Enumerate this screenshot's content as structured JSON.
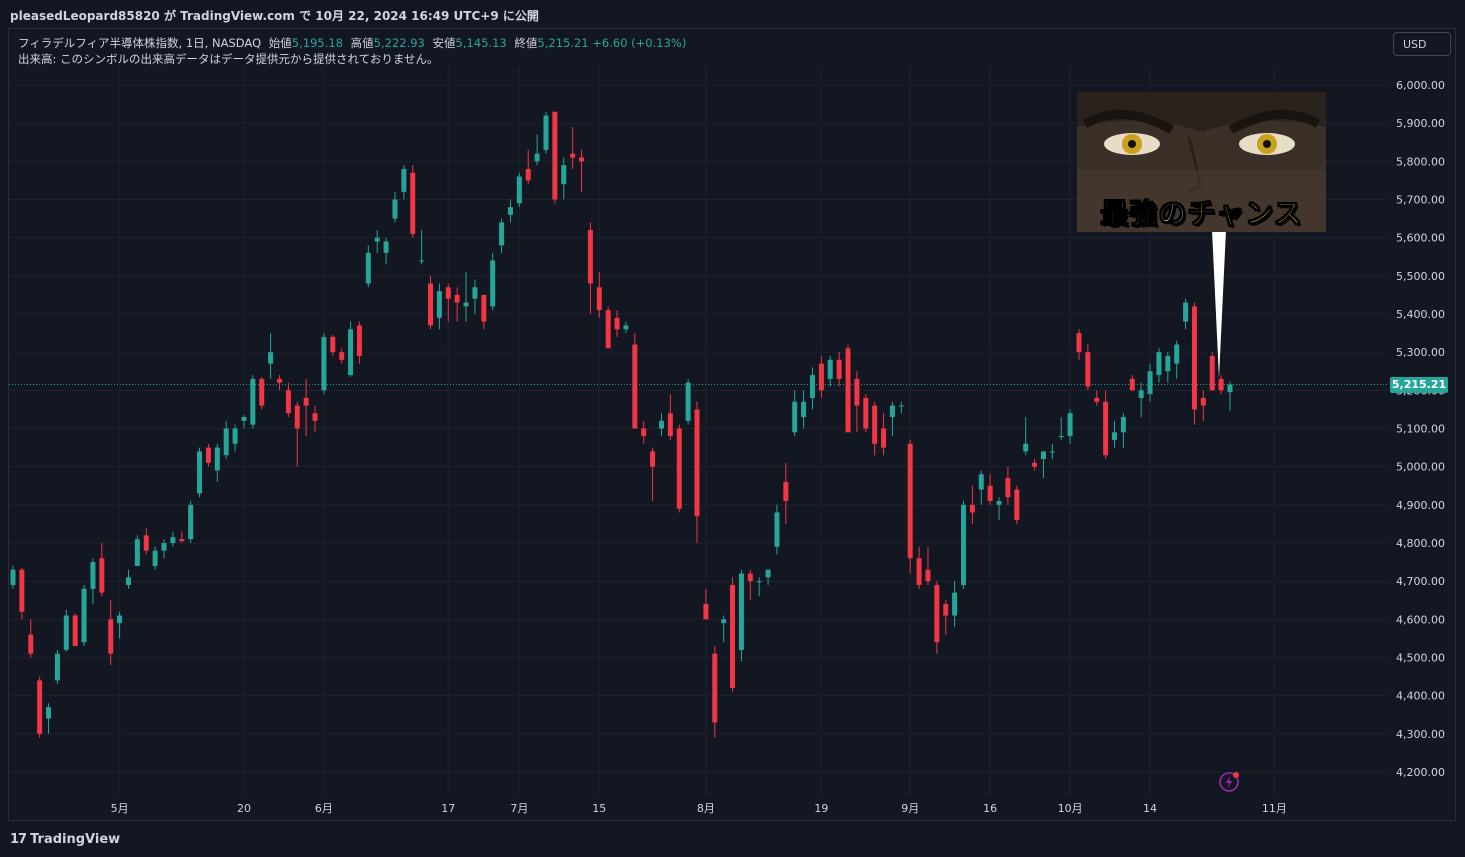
{
  "header": {
    "publish_line": "pleasedLeopard85820 が TradingView.com で 10月 22, 2024 16:49 UTC+9 に公開"
  },
  "legend": {
    "symbol": "フィラデルフィア半導体株指数, 1日, NASDAQ",
    "open_label": "始値",
    "open": "5,195.18",
    "high_label": "高値",
    "high": "5,222.93",
    "low_label": "安値",
    "low": "5,145.13",
    "close_label": "終値",
    "close": "5,215.21",
    "change": "+6.60 (+0.13%)",
    "volume_note": "出来高: このシンボルの出来高データはデータ提供元から提供されておりません。"
  },
  "currency_button": "USD",
  "last_price": "5,215.21",
  "thumbnail": {
    "caption_part1": "最強の",
    "caption_part2": "チャンス"
  },
  "footer": {
    "brand": "TradingView",
    "logo": "17"
  },
  "colors": {
    "up": "#26a69a",
    "down": "#f23645",
    "background": "#131722",
    "grid": "#1e222d",
    "text": "#d1d4dc"
  },
  "chart_data": {
    "type": "candlestick",
    "title": "フィラデルフィア半導体株指数, 1日, NASDAQ",
    "x_ticks": [
      "5月",
      "20",
      "6月",
      "17",
      "7月",
      "15",
      "8月",
      "19",
      "9月",
      "16",
      "10月",
      "14",
      "11月"
    ],
    "y_ticks": [
      "4,200.00",
      "4,300.00",
      "4,400.00",
      "4,500.00",
      "4,600.00",
      "4,700.00",
      "4,800.00",
      "4,900.00",
      "5,000.00",
      "5,100.00",
      "5,200.00",
      "5,300.00",
      "5,400.00",
      "5,500.00",
      "5,600.00",
      "5,700.00",
      "5,800.00",
      "5,900.00",
      "6,000.00"
    ],
    "ylim": [
      4150,
      6050
    ],
    "grid": true,
    "last_price": 5215.21,
    "candles": [
      {
        "o": 4690,
        "h": 4740,
        "l": 4680,
        "c": 4730
      },
      {
        "o": 4730,
        "h": 4735,
        "l": 4600,
        "c": 4620
      },
      {
        "o": 4560,
        "h": 4600,
        "l": 4500,
        "c": 4510
      },
      {
        "o": 4440,
        "h": 4450,
        "l": 4290,
        "c": 4300
      },
      {
        "o": 4340,
        "h": 4380,
        "l": 4300,
        "c": 4370
      },
      {
        "o": 4440,
        "h": 4520,
        "l": 4430,
        "c": 4510
      },
      {
        "o": 4520,
        "h": 4625,
        "l": 4515,
        "c": 4610
      },
      {
        "o": 4610,
        "h": 4615,
        "l": 4530,
        "c": 4530
      },
      {
        "o": 4540,
        "h": 4690,
        "l": 4530,
        "c": 4680
      },
      {
        "o": 4680,
        "h": 4760,
        "l": 4640,
        "c": 4750
      },
      {
        "o": 4760,
        "h": 4800,
        "l": 4660,
        "c": 4670
      },
      {
        "o": 4600,
        "h": 4650,
        "l": 4480,
        "c": 4510
      },
      {
        "o": 4590,
        "h": 4620,
        "l": 4550,
        "c": 4610
      },
      {
        "o": 4690,
        "h": 4730,
        "l": 4680,
        "c": 4710
      },
      {
        "o": 4740,
        "h": 4820,
        "l": 4740,
        "c": 4810
      },
      {
        "o": 4820,
        "h": 4840,
        "l": 4770,
        "c": 4780
      },
      {
        "o": 4740,
        "h": 4790,
        "l": 4730,
        "c": 4780
      },
      {
        "o": 4780,
        "h": 4810,
        "l": 4760,
        "c": 4800
      },
      {
        "o": 4800,
        "h": 4830,
        "l": 4790,
        "c": 4815
      },
      {
        "o": 4810,
        "h": 4830,
        "l": 4800,
        "c": 4805
      },
      {
        "o": 4810,
        "h": 4910,
        "l": 4800,
        "c": 4900
      },
      {
        "o": 4930,
        "h": 5050,
        "l": 4920,
        "c": 5040
      },
      {
        "o": 5050,
        "h": 5060,
        "l": 5000,
        "c": 5010
      },
      {
        "o": 4990,
        "h": 5060,
        "l": 4960,
        "c": 5050
      },
      {
        "o": 5030,
        "h": 5120,
        "l": 5020,
        "c": 5100
      },
      {
        "o": 5060,
        "h": 5110,
        "l": 5040,
        "c": 5100
      },
      {
        "o": 5120,
        "h": 5135,
        "l": 5100,
        "c": 5130
      },
      {
        "o": 5110,
        "h": 5240,
        "l": 5100,
        "c": 5230
      },
      {
        "o": 5230,
        "h": 5235,
        "l": 5150,
        "c": 5160
      },
      {
        "o": 5270,
        "h": 5350,
        "l": 5230,
        "c": 5300
      },
      {
        "o": 5230,
        "h": 5240,
        "l": 5200,
        "c": 5220
      },
      {
        "o": 5200,
        "h": 5220,
        "l": 5130,
        "c": 5140
      },
      {
        "o": 5160,
        "h": 5170,
        "l": 5000,
        "c": 5100
      },
      {
        "o": 5180,
        "h": 5230,
        "l": 5080,
        "c": 5160
      },
      {
        "o": 5140,
        "h": 5160,
        "l": 5090,
        "c": 5120
      },
      {
        "o": 5200,
        "h": 5350,
        "l": 5190,
        "c": 5340
      },
      {
        "o": 5340,
        "h": 5345,
        "l": 5290,
        "c": 5300
      },
      {
        "o": 5300,
        "h": 5310,
        "l": 5270,
        "c": 5280
      },
      {
        "o": 5240,
        "h": 5380,
        "l": 5235,
        "c": 5360
      },
      {
        "o": 5370,
        "h": 5380,
        "l": 5270,
        "c": 5290
      },
      {
        "o": 5480,
        "h": 5580,
        "l": 5470,
        "c": 5560
      },
      {
        "o": 5590,
        "h": 5620,
        "l": 5560,
        "c": 5600
      },
      {
        "o": 5560,
        "h": 5600,
        "l": 5530,
        "c": 5590
      },
      {
        "o": 5650,
        "h": 5720,
        "l": 5640,
        "c": 5700
      },
      {
        "o": 5720,
        "h": 5790,
        "l": 5700,
        "c": 5780
      },
      {
        "o": 5770,
        "h": 5790,
        "l": 5600,
        "c": 5610
      },
      {
        "o": 5540,
        "h": 5620,
        "l": 5530,
        "c": 5540
      },
      {
        "o": 5480,
        "h": 5500,
        "l": 5360,
        "c": 5370
      },
      {
        "o": 5390,
        "h": 5480,
        "l": 5360,
        "c": 5460
      },
      {
        "o": 5470,
        "h": 5480,
        "l": 5380,
        "c": 5440
      },
      {
        "o": 5450,
        "h": 5470,
        "l": 5380,
        "c": 5430
      },
      {
        "o": 5420,
        "h": 5510,
        "l": 5380,
        "c": 5430
      },
      {
        "o": 5440,
        "h": 5490,
        "l": 5400,
        "c": 5470
      },
      {
        "o": 5450,
        "h": 5450,
        "l": 5360,
        "c": 5380
      },
      {
        "o": 5420,
        "h": 5560,
        "l": 5410,
        "c": 5540
      },
      {
        "o": 5580,
        "h": 5650,
        "l": 5560,
        "c": 5640
      },
      {
        "o": 5660,
        "h": 5700,
        "l": 5640,
        "c": 5680
      },
      {
        "o": 5690,
        "h": 5770,
        "l": 5680,
        "c": 5760
      },
      {
        "o": 5780,
        "h": 5830,
        "l": 5740,
        "c": 5750
      },
      {
        "o": 5800,
        "h": 5870,
        "l": 5790,
        "c": 5820
      },
      {
        "o": 5830,
        "h": 5930,
        "l": 5820,
        "c": 5920
      },
      {
        "o": 5930,
        "h": 5930,
        "l": 5690,
        "c": 5700
      },
      {
        "o": 5740,
        "h": 5810,
        "l": 5700,
        "c": 5790
      },
      {
        "o": 5820,
        "h": 5890,
        "l": 5780,
        "c": 5810
      },
      {
        "o": 5810,
        "h": 5830,
        "l": 5720,
        "c": 5800
      },
      {
        "o": 5620,
        "h": 5640,
        "l": 5400,
        "c": 5480
      },
      {
        "o": 5470,
        "h": 5510,
        "l": 5390,
        "c": 5410
      },
      {
        "o": 5410,
        "h": 5420,
        "l": 5320,
        "c": 5310
      },
      {
        "o": 5390,
        "h": 5410,
        "l": 5340,
        "c": 5360
      },
      {
        "o": 5360,
        "h": 5380,
        "l": 5350,
        "c": 5370
      },
      {
        "o": 5320,
        "h": 5350,
        "l": 5100,
        "c": 5100
      },
      {
        "o": 5100,
        "h": 5120,
        "l": 5060,
        "c": 5080
      },
      {
        "o": 5040,
        "h": 5050,
        "l": 4910,
        "c": 5000
      },
      {
        "o": 5100,
        "h": 5140,
        "l": 5080,
        "c": 5120
      },
      {
        "o": 5140,
        "h": 5190,
        "l": 5070,
        "c": 5080
      },
      {
        "o": 5100,
        "h": 5110,
        "l": 4880,
        "c": 4890
      },
      {
        "o": 5120,
        "h": 5230,
        "l": 5110,
        "c": 5220
      },
      {
        "o": 5150,
        "h": 5170,
        "l": 4800,
        "c": 4870
      },
      {
        "o": 4640,
        "h": 4680,
        "l": 4600,
        "c": 4600
      },
      {
        "o": 4510,
        "h": 4530,
        "l": 4290,
        "c": 4330
      },
      {
        "o": 4590,
        "h": 4610,
        "l": 4540,
        "c": 4600
      },
      {
        "o": 4690,
        "h": 4710,
        "l": 4410,
        "c": 4420
      },
      {
        "o": 4520,
        "h": 4730,
        "l": 4490,
        "c": 4720
      },
      {
        "o": 4720,
        "h": 4730,
        "l": 4650,
        "c": 4700
      },
      {
        "o": 4700,
        "h": 4710,
        "l": 4660,
        "c": 4700
      },
      {
        "o": 4710,
        "h": 4730,
        "l": 4690,
        "c": 4730
      },
      {
        "o": 4790,
        "h": 4900,
        "l": 4770,
        "c": 4880
      },
      {
        "o": 4960,
        "h": 5010,
        "l": 4850,
        "c": 4910
      },
      {
        "o": 5090,
        "h": 5200,
        "l": 5080,
        "c": 5170
      },
      {
        "o": 5130,
        "h": 5200,
        "l": 5100,
        "c": 5170
      },
      {
        "o": 5180,
        "h": 5260,
        "l": 5150,
        "c": 5240
      },
      {
        "o": 5270,
        "h": 5290,
        "l": 5180,
        "c": 5200
      },
      {
        "o": 5230,
        "h": 5290,
        "l": 5210,
        "c": 5280
      },
      {
        "o": 5280,
        "h": 5300,
        "l": 5210,
        "c": 5230
      },
      {
        "o": 5310,
        "h": 5320,
        "l": 5090,
        "c": 5090
      },
      {
        "o": 5230,
        "h": 5250,
        "l": 5090,
        "c": 5160
      },
      {
        "o": 5180,
        "h": 5190,
        "l": 5090,
        "c": 5100
      },
      {
        "o": 5160,
        "h": 5170,
        "l": 5030,
        "c": 5060
      },
      {
        "o": 5100,
        "h": 5140,
        "l": 5030,
        "c": 5050
      },
      {
        "o": 5130,
        "h": 5170,
        "l": 5080,
        "c": 5160
      },
      {
        "o": 5160,
        "h": 5170,
        "l": 5140,
        "c": 5160
      },
      {
        "o": 5060,
        "h": 5070,
        "l": 4720,
        "c": 4760
      },
      {
        "o": 4760,
        "h": 4790,
        "l": 4680,
        "c": 4690
      },
      {
        "o": 4730,
        "h": 4790,
        "l": 4690,
        "c": 4700
      },
      {
        "o": 4690,
        "h": 4700,
        "l": 4510,
        "c": 4540
      },
      {
        "o": 4640,
        "h": 4650,
        "l": 4560,
        "c": 4610
      },
      {
        "o": 4610,
        "h": 4700,
        "l": 4580,
        "c": 4670
      },
      {
        "o": 4690,
        "h": 4910,
        "l": 4680,
        "c": 4900
      },
      {
        "o": 4900,
        "h": 4950,
        "l": 4850,
        "c": 4880
      },
      {
        "o": 4940,
        "h": 4990,
        "l": 4900,
        "c": 4980
      },
      {
        "o": 4950,
        "h": 4980,
        "l": 4900,
        "c": 4910
      },
      {
        "o": 4900,
        "h": 4920,
        "l": 4860,
        "c": 4910
      },
      {
        "o": 4970,
        "h": 5000,
        "l": 4900,
        "c": 4920
      },
      {
        "o": 4940,
        "h": 4950,
        "l": 4850,
        "c": 4860
      },
      {
        "o": 5040,
        "h": 5130,
        "l": 5030,
        "c": 5060
      },
      {
        "o": 5010,
        "h": 5020,
        "l": 4990,
        "c": 5000
      },
      {
        "o": 5020,
        "h": 5040,
        "l": 4970,
        "c": 5040
      },
      {
        "o": 5040,
        "h": 5060,
        "l": 5020,
        "c": 5040
      },
      {
        "o": 5080,
        "h": 5130,
        "l": 5070,
        "c": 5080
      },
      {
        "o": 5080,
        "h": 5150,
        "l": 5060,
        "c": 5140
      },
      {
        "o": 5350,
        "h": 5360,
        "l": 5280,
        "c": 5300
      },
      {
        "o": 5300,
        "h": 5320,
        "l": 5200,
        "c": 5210
      },
      {
        "o": 5180,
        "h": 5200,
        "l": 5160,
        "c": 5170
      },
      {
        "o": 5170,
        "h": 5200,
        "l": 5020,
        "c": 5030
      },
      {
        "o": 5070,
        "h": 5120,
        "l": 5050,
        "c": 5090
      },
      {
        "o": 5090,
        "h": 5140,
        "l": 5050,
        "c": 5130
      },
      {
        "o": 5230,
        "h": 5240,
        "l": 5200,
        "c": 5200
      },
      {
        "o": 5180,
        "h": 5220,
        "l": 5130,
        "c": 5200
      },
      {
        "o": 5190,
        "h": 5270,
        "l": 5170,
        "c": 5250
      },
      {
        "o": 5240,
        "h": 5310,
        "l": 5220,
        "c": 5300
      },
      {
        "o": 5250,
        "h": 5300,
        "l": 5220,
        "c": 5290
      },
      {
        "o": 5270,
        "h": 5330,
        "l": 5230,
        "c": 5320
      },
      {
        "o": 5380,
        "h": 5440,
        "l": 5360,
        "c": 5430
      },
      {
        "o": 5420,
        "h": 5430,
        "l": 5110,
        "c": 5150
      },
      {
        "o": 5180,
        "h": 5200,
        "l": 5120,
        "c": 5160
      },
      {
        "o": 5290,
        "h": 5300,
        "l": 5200,
        "c": 5200
      },
      {
        "o": 5230,
        "h": 5240,
        "l": 5190,
        "c": 5200
      },
      {
        "o": 5195.18,
        "h": 5222.93,
        "l": 5145.13,
        "c": 5215.21
      }
    ]
  }
}
